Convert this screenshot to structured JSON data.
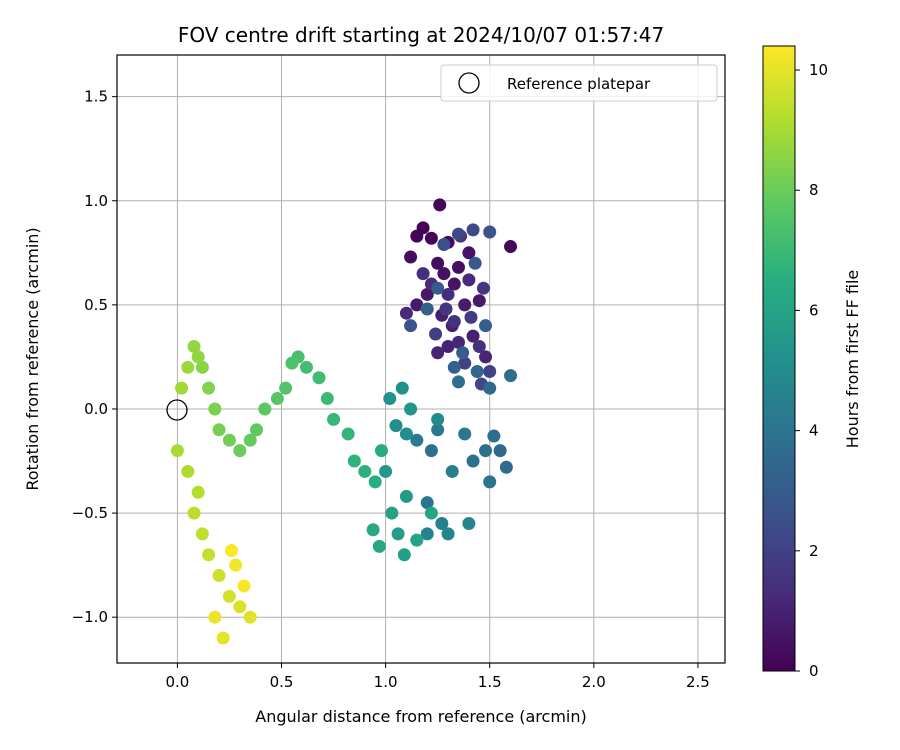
{
  "chart_data": {
    "type": "scatter",
    "title": "FOV centre drift starting at 2024/10/07 01:57:47",
    "xlabel": "Angular distance from reference (arcmin)",
    "ylabel": "Rotation from reference (arcmin)",
    "xlim": [
      -0.29,
      2.63
    ],
    "ylim": [
      -1.22,
      1.7
    ],
    "xticks": [
      0.0,
      0.5,
      1.0,
      1.5,
      2.0,
      2.5
    ],
    "xtick_labels": [
      "0.0",
      "0.5",
      "1.0",
      "1.5",
      "2.0",
      "2.5"
    ],
    "yticks": [
      -1.0,
      -0.5,
      0.0,
      0.5,
      1.0,
      1.5
    ],
    "ytick_labels": [
      "−1.0",
      "−0.5",
      "0.0",
      "0.5",
      "1.0",
      "1.5"
    ],
    "grid": true,
    "legend": {
      "position": "top-right",
      "entries": [
        "Reference platepar"
      ]
    },
    "reference_point": {
      "label": "Reference platepar",
      "x": 0.0,
      "y": 0.0,
      "marker": "open-circle"
    },
    "colorbar": {
      "label": "Hours from first FF file",
      "colormap": "viridis",
      "range": [
        0,
        10.4
      ],
      "ticks": [
        0,
        2,
        4,
        6,
        8,
        10
      ],
      "tick_labels": [
        "0",
        "2",
        "4",
        "6",
        "8",
        "10"
      ]
    },
    "points": [
      [
        1.18,
        0.87,
        0.05
      ],
      [
        1.22,
        0.82,
        0.15
      ],
      [
        1.15,
        0.83,
        0.1
      ],
      [
        1.26,
        0.98,
        0.2
      ],
      [
        1.6,
        0.78,
        0.25
      ],
      [
        1.3,
        0.8,
        0.3
      ],
      [
        1.12,
        0.73,
        0.35
      ],
      [
        1.25,
        0.7,
        0.4
      ],
      [
        1.35,
        0.68,
        0.45
      ],
      [
        1.28,
        0.65,
        0.5
      ],
      [
        1.4,
        0.75,
        0.55
      ],
      [
        1.33,
        0.6,
        0.6
      ],
      [
        1.2,
        0.55,
        0.65
      ],
      [
        1.45,
        0.52,
        0.7
      ],
      [
        1.15,
        0.5,
        0.75
      ],
      [
        1.38,
        0.5,
        0.8
      ],
      [
        1.27,
        0.45,
        0.85
      ],
      [
        1.32,
        0.4,
        0.9
      ],
      [
        1.42,
        0.35,
        0.95
      ],
      [
        1.3,
        0.3,
        1.0
      ],
      [
        1.25,
        0.27,
        1.05
      ],
      [
        1.48,
        0.25,
        1.1
      ],
      [
        1.35,
        0.32,
        1.15
      ],
      [
        1.1,
        0.46,
        1.2
      ],
      [
        1.4,
        0.62,
        1.25
      ],
      [
        1.22,
        0.6,
        1.3
      ],
      [
        1.3,
        0.55,
        1.35
      ],
      [
        1.18,
        0.65,
        1.4
      ],
      [
        1.45,
        0.3,
        1.45
      ],
      [
        1.33,
        0.42,
        1.5
      ],
      [
        1.36,
        0.83,
        1.55
      ],
      [
        1.47,
        0.58,
        1.6
      ],
      [
        1.29,
        0.48,
        1.7
      ],
      [
        1.41,
        0.44,
        1.8
      ],
      [
        1.24,
        0.36,
        1.9
      ],
      [
        1.38,
        0.22,
        2.0
      ],
      [
        1.5,
        0.18,
        2.1
      ],
      [
        1.46,
        0.12,
        2.2
      ],
      [
        1.35,
        0.84,
        2.3
      ],
      [
        1.42,
        0.86,
        2.4
      ],
      [
        1.28,
        0.79,
        2.5
      ],
      [
        1.5,
        0.85,
        2.6
      ],
      [
        1.12,
        0.4,
        2.7
      ],
      [
        1.43,
        0.7,
        2.8
      ],
      [
        1.25,
        0.58,
        2.9
      ],
      [
        1.37,
        0.27,
        3.0
      ],
      [
        1.48,
        0.4,
        3.1
      ],
      [
        1.2,
        0.48,
        3.2
      ],
      [
        1.33,
        0.2,
        3.3
      ],
      [
        1.44,
        0.18,
        3.4
      ],
      [
        1.5,
        0.1,
        3.5
      ],
      [
        1.55,
        -0.2,
        3.55
      ],
      [
        1.58,
        -0.28,
        3.6
      ],
      [
        1.6,
        0.16,
        3.65
      ],
      [
        1.35,
        0.13,
        3.7
      ],
      [
        1.52,
        -0.13,
        3.75
      ],
      [
        1.48,
        -0.2,
        3.8
      ],
      [
        1.42,
        -0.25,
        3.85
      ],
      [
        1.22,
        -0.2,
        3.9
      ],
      [
        1.2,
        -0.45,
        3.95
      ],
      [
        1.5,
        -0.35,
        4.0
      ],
      [
        1.38,
        -0.12,
        4.1
      ],
      [
        1.25,
        -0.1,
        4.2
      ],
      [
        1.15,
        -0.15,
        4.3
      ],
      [
        1.32,
        -0.3,
        4.4
      ],
      [
        1.27,
        -0.55,
        4.5
      ],
      [
        1.2,
        -0.6,
        4.6
      ],
      [
        1.3,
        -0.6,
        4.7
      ],
      [
        1.4,
        -0.55,
        4.8
      ],
      [
        1.25,
        -0.05,
        4.9
      ],
      [
        1.05,
        -0.08,
        5.0
      ],
      [
        1.1,
        -0.12,
        5.1
      ],
      [
        1.08,
        0.1,
        5.2
      ],
      [
        1.02,
        0.05,
        5.3
      ],
      [
        1.12,
        0.0,
        5.4
      ],
      [
        1.0,
        -0.3,
        5.5
      ],
      [
        1.1,
        -0.42,
        5.6
      ],
      [
        1.06,
        -0.6,
        5.7
      ],
      [
        1.09,
        -0.7,
        5.8
      ],
      [
        1.03,
        -0.5,
        5.9
      ],
      [
        1.15,
        -0.63,
        6.0
      ],
      [
        1.22,
        -0.5,
        6.1
      ],
      [
        0.97,
        -0.66,
        6.2
      ],
      [
        0.94,
        -0.58,
        6.3
      ],
      [
        0.98,
        -0.2,
        6.4
      ],
      [
        0.95,
        -0.35,
        6.5
      ],
      [
        0.9,
        -0.3,
        6.6
      ],
      [
        0.85,
        -0.25,
        6.7
      ],
      [
        0.82,
        -0.12,
        6.8
      ],
      [
        0.75,
        -0.05,
        6.9
      ],
      [
        0.72,
        0.05,
        7.0
      ],
      [
        0.68,
        0.15,
        7.1
      ],
      [
        0.62,
        0.2,
        7.2
      ],
      [
        0.58,
        0.25,
        7.3
      ],
      [
        0.55,
        0.22,
        7.4
      ],
      [
        0.52,
        0.1,
        7.5
      ],
      [
        0.48,
        0.05,
        7.6
      ],
      [
        0.42,
        0.0,
        7.7
      ],
      [
        0.38,
        -0.1,
        7.8
      ],
      [
        0.35,
        -0.15,
        7.9
      ],
      [
        0.3,
        -0.2,
        8.0
      ],
      [
        0.25,
        -0.15,
        8.1
      ],
      [
        0.2,
        -0.1,
        8.2
      ],
      [
        0.18,
        0.0,
        8.3
      ],
      [
        0.15,
        0.1,
        8.4
      ],
      [
        0.12,
        0.2,
        8.5
      ],
      [
        0.1,
        0.25,
        8.6
      ],
      [
        0.08,
        0.3,
        8.7
      ],
      [
        0.05,
        0.2,
        8.8
      ],
      [
        0.02,
        0.1,
        8.9
      ],
      [
        0.0,
        -0.2,
        9.0
      ],
      [
        0.05,
        -0.3,
        9.1
      ],
      [
        0.1,
        -0.4,
        9.2
      ],
      [
        0.08,
        -0.5,
        9.3
      ],
      [
        0.12,
        -0.6,
        9.4
      ],
      [
        0.15,
        -0.7,
        9.5
      ],
      [
        0.2,
        -0.8,
        9.6
      ],
      [
        0.25,
        -0.9,
        9.7
      ],
      [
        0.3,
        -0.95,
        9.8
      ],
      [
        0.35,
        -1.0,
        9.9
      ],
      [
        0.22,
        -1.1,
        10.0
      ],
      [
        0.18,
        -1.0,
        10.1
      ],
      [
        0.28,
        -0.75,
        10.2
      ],
      [
        0.32,
        -0.85,
        10.3
      ],
      [
        0.26,
        -0.68,
        10.35
      ]
    ]
  }
}
